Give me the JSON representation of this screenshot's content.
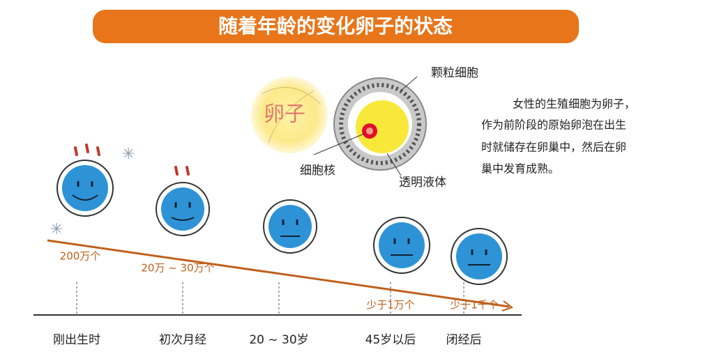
{
  "header": {
    "title": "随着年龄的变化卵子的状态"
  },
  "egg_diagram": {
    "egg_label": "卵子",
    "granulosa_label": "颗粒细胞",
    "nucleus_label": "细胞核",
    "fluid_label": "透明液体"
  },
  "description": [
    "女性的生殖细胞为卵子，",
    "作为前阶段的原始卵泡在出生",
    "时就储存在卵巢中，然后在卵",
    "巢中发育成熟。"
  ],
  "stages": [
    {
      "label": "刚出生时",
      "count": "200万个"
    },
    {
      "label": "初次月经",
      "count": "20万 ~ 30万个"
    },
    {
      "label": "20 ~ 30岁",
      "count": null
    },
    {
      "label": "45岁以后",
      "count": "少于1万个"
    },
    {
      "label": "闭经后",
      "count": "少于1千个"
    }
  ]
}
